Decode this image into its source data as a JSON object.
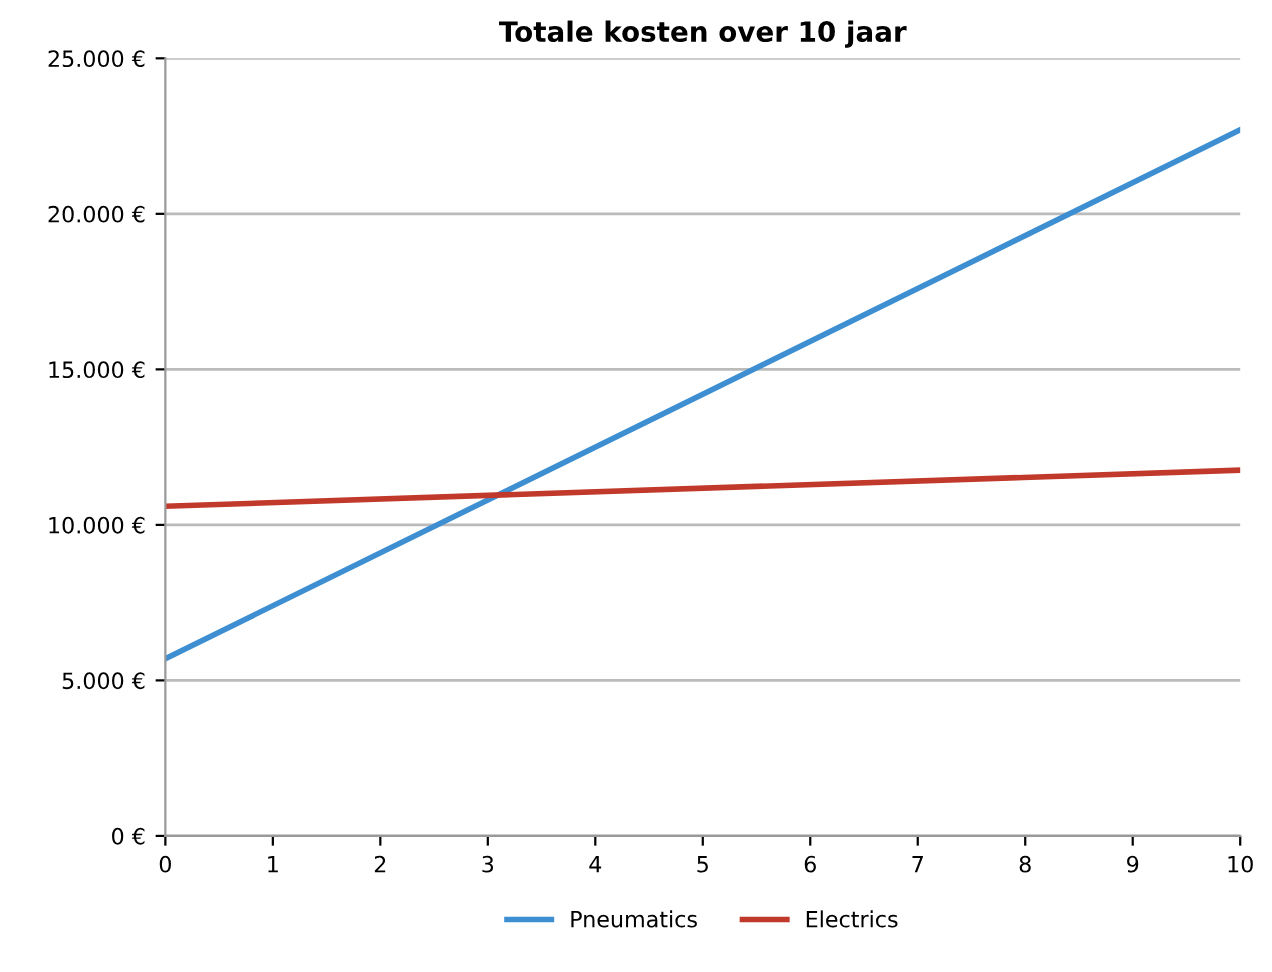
{
  "chart_data": {
    "type": "line",
    "title": "Totale kosten over 10 jaar",
    "x": [
      0,
      10
    ],
    "series": [
      {
        "name": "Pneumatics",
        "color": "#3d8fd1",
        "values": [
          5700,
          22700
        ]
      },
      {
        "name": "Electrics",
        "color": "#c0392b",
        "values": [
          10600,
          11760
        ]
      }
    ],
    "xlim": [
      0,
      10
    ],
    "xticks": [
      0,
      1,
      2,
      3,
      4,
      5,
      6,
      7,
      8,
      9,
      10
    ],
    "ylim": [
      0,
      25000
    ],
    "yticks": [
      {
        "value": 0,
        "label": "0 €"
      },
      {
        "value": 5000,
        "label": "5.000 €"
      },
      {
        "value": 10000,
        "label": "10.000 €"
      },
      {
        "value": 15000,
        "label": "15.000 €"
      },
      {
        "value": 20000,
        "label": "20.000 €"
      },
      {
        "value": 25000,
        "label": "25.000 €"
      }
    ],
    "grid": "y",
    "legend": "bottom",
    "marker": "none",
    "line_style": "solid"
  }
}
